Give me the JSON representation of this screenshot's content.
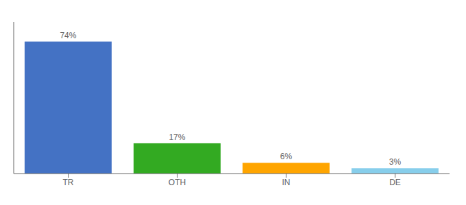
{
  "chart_data": {
    "type": "bar",
    "categories": [
      "TR",
      "OTH",
      "IN",
      "DE"
    ],
    "values": [
      74,
      17,
      6,
      3
    ],
    "value_labels": [
      "74%",
      "17%",
      "6%",
      "3%"
    ],
    "colors": [
      "#4472C4",
      "#33AA22",
      "#FFA500",
      "#87CEEB"
    ],
    "ylim": [
      0,
      85
    ],
    "yticks": [],
    "grid": false,
    "data_labels": true,
    "tick_labels": "x"
  }
}
